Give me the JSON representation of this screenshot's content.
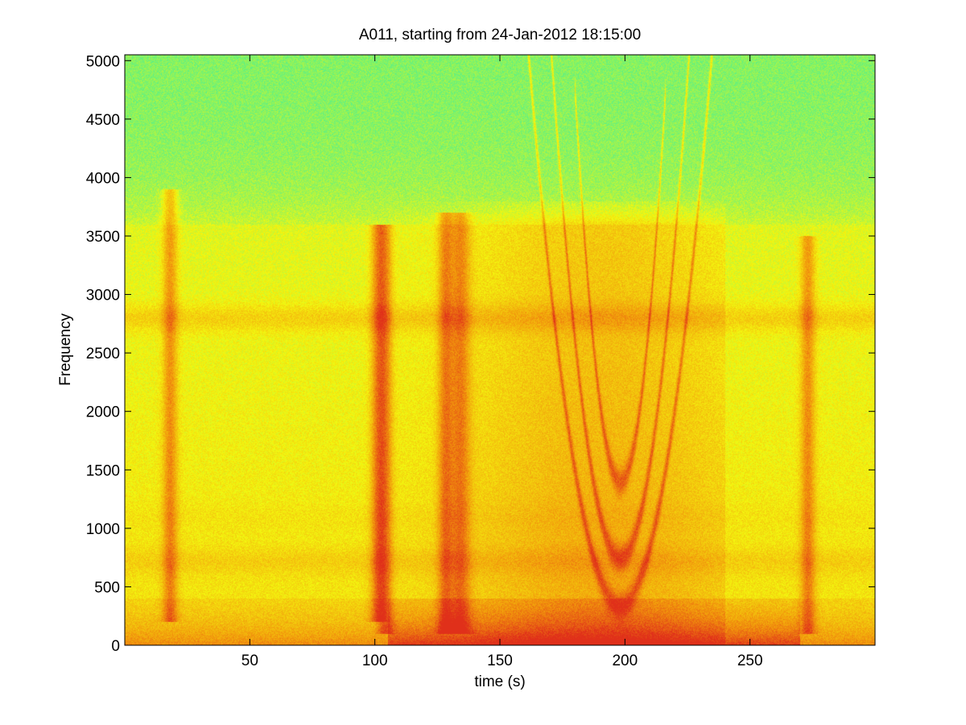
{
  "chart_data": {
    "type": "heatmap",
    "title": "A011, starting from 24-Jan-2012 18:15:00",
    "xlabel": "time (s)",
    "ylabel": "Frequency",
    "xlim": [
      0,
      300
    ],
    "ylim": [
      0,
      5050
    ],
    "x_ticks": [
      50,
      100,
      150,
      200,
      250
    ],
    "y_ticks": [
      0,
      500,
      1000,
      1500,
      2000,
      2500,
      3000,
      3500,
      4000,
      4500,
      5000
    ],
    "grid": false,
    "colormap": [
      "#55f08a",
      "#f4f80f",
      "#f29a0c",
      "#e0301a"
    ],
    "background_level_above_cutoff": 0.1,
    "energy_cutoff_frequency": 3600,
    "broadband_events": [
      {
        "time": 18,
        "width": 3,
        "f_min": 200,
        "f_max": 3900
      },
      {
        "time": 101,
        "width": 3,
        "f_min": 200,
        "f_max": 3600
      },
      {
        "time": 104,
        "width": 3,
        "f_min": 100,
        "f_max": 3600
      },
      {
        "time": 128,
        "width": 3,
        "f_min": 100,
        "f_max": 3700
      },
      {
        "time": 134,
        "width": 4,
        "f_min": 100,
        "f_max": 3700
      },
      {
        "time": 273,
        "width": 3,
        "f_min": 100,
        "f_max": 3500
      }
    ],
    "arc_bands": [
      {
        "center_time": 198,
        "half_width_time": 30,
        "f_vertex": 350,
        "f_edge": 3500
      },
      {
        "center_time": 198,
        "half_width_time": 22,
        "f_vertex": 750,
        "f_edge": 3500
      },
      {
        "center_time": 198,
        "half_width_time": 14,
        "f_vertex": 1400,
        "f_edge": 3400
      }
    ],
    "horizontal_bands": [
      {
        "frequency": 2800,
        "level": 0.55
      },
      {
        "frequency": 720,
        "level": 0.45
      },
      {
        "frequency": 1100,
        "level": 0.35
      }
    ],
    "low_frequency_band": {
      "f_max": 250,
      "time_start": 105,
      "time_end": 270,
      "level": 0.85
    }
  }
}
